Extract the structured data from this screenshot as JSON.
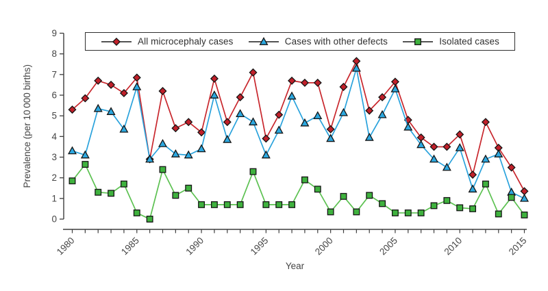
{
  "figure": {
    "background": "#ffffff",
    "text_color": "#454545",
    "axis_color": "#3d3d3d"
  },
  "legend": {
    "border_color": "#2e2e2e",
    "line_color": "#1a1a1a"
  },
  "chart_data": {
    "type": "line",
    "title": "",
    "xlabel": "Year",
    "ylabel": "Prevalence (per 10 000 births)",
    "x_range": [
      1980,
      2015
    ],
    "x": [
      1980,
      1981,
      1982,
      1983,
      1984,
      1985,
      1986,
      1987,
      1988,
      1989,
      1990,
      1991,
      1992,
      1993,
      1994,
      1995,
      1996,
      1997,
      1998,
      1999,
      2000,
      2001,
      2002,
      2003,
      2004,
      2005,
      2006,
      2007,
      2008,
      2009,
      2010,
      2011,
      2012,
      2013,
      2014,
      2015
    ],
    "xtick_labels": [
      1980,
      1985,
      1990,
      1995,
      2000,
      2005,
      2010,
      2015
    ],
    "ylim": [
      0,
      9
    ],
    "yticks": [
      0,
      1,
      2,
      3,
      4,
      5,
      6,
      7,
      8,
      9
    ],
    "grid": false,
    "legend_position": "top-inside",
    "series": [
      {
        "name": "All microcephaly cases",
        "marker": "diamond",
        "color": "#c1202a",
        "line_color": "#c8262c",
        "values": [
          5.3,
          5.85,
          6.7,
          6.5,
          6.1,
          6.85,
          2.9,
          6.2,
          4.4,
          4.7,
          4.2,
          6.8,
          4.7,
          5.9,
          7.1,
          3.9,
          5.05,
          6.7,
          6.6,
          6.6,
          4.35,
          6.4,
          7.65,
          5.25,
          5.9,
          6.65,
          4.8,
          3.95,
          3.5,
          3.5,
          4.1,
          2.15,
          4.7,
          3.45,
          2.5,
          1.35
        ]
      },
      {
        "name": "Cases with other defects",
        "marker": "triangle",
        "color": "#2ca8e0",
        "line_color": "#29a2dc",
        "values": [
          3.3,
          3.1,
          5.35,
          5.2,
          4.35,
          6.4,
          2.9,
          3.65,
          3.15,
          3.1,
          3.4,
          6.0,
          3.85,
          5.1,
          4.7,
          3.1,
          4.3,
          5.95,
          4.65,
          5.0,
          3.9,
          5.15,
          7.3,
          3.95,
          5.05,
          6.3,
          4.45,
          3.6,
          2.9,
          2.5,
          3.45,
          1.45,
          2.9,
          3.15,
          1.3,
          1.0
        ]
      },
      {
        "name": "Isolated cases",
        "marker": "square",
        "color": "#3fb23e",
        "line_color": "#5cc151",
        "values": [
          1.85,
          2.65,
          1.3,
          1.25,
          1.7,
          0.3,
          0.0,
          2.4,
          1.15,
          1.5,
          0.7,
          0.7,
          0.7,
          0.7,
          2.3,
          0.7,
          0.7,
          0.7,
          1.9,
          1.45,
          0.35,
          1.1,
          0.35,
          1.15,
          0.75,
          0.3,
          0.3,
          0.3,
          0.65,
          0.9,
          0.55,
          0.5,
          1.7,
          0.25,
          1.05,
          0.2
        ]
      }
    ]
  }
}
